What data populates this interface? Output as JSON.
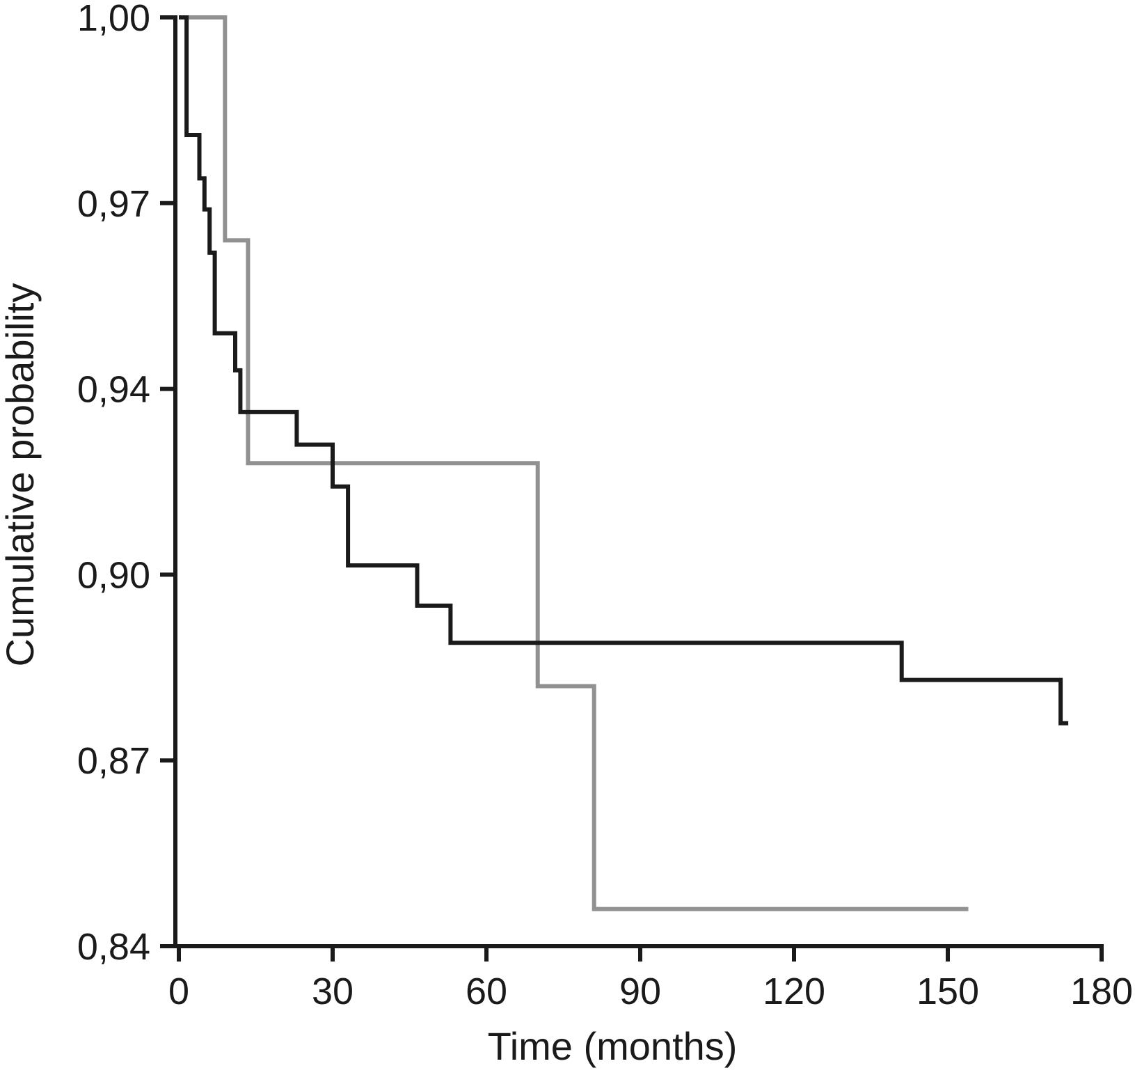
{
  "figure": {
    "kind": "kaplan-meier-survival-plot",
    "background_color": "#ffffff",
    "axis_color": "#1a1a1a"
  },
  "chart_data": {
    "type": "line",
    "subtype": "step-survival-curves",
    "title": "",
    "xlabel": "Time (months)",
    "ylabel": "Cumulative probability",
    "grid": false,
    "legend_position": "none",
    "xlim": [
      0,
      180
    ],
    "x_ticks": [
      0,
      30,
      60,
      90,
      120,
      150,
      180
    ],
    "x_tick_labels": [
      "0",
      "30",
      "60",
      "90",
      "120",
      "150",
      "180"
    ],
    "y_tick_values": [
      1.0,
      0.97,
      0.94,
      0.9,
      0.87,
      0.84
    ],
    "y_tick_labels": [
      "1,00",
      "0,97",
      "0,94",
      "0,90",
      "0,87",
      "0,84"
    ],
    "series": [
      {
        "name": "curve-gray",
        "color": "#919191",
        "start": {
          "t": 0,
          "p": 1.0
        },
        "steps": [
          {
            "t": 9,
            "p": 0.964
          },
          {
            "t": 13.5,
            "p": 0.924
          },
          {
            "t": 70,
            "p": 0.882
          },
          {
            "t": 81,
            "p": 0.846
          }
        ],
        "end_t": 154
      },
      {
        "name": "curve-black",
        "color": "#1a1a1a",
        "start": {
          "t": 0,
          "p": 1.0
        },
        "steps": [
          {
            "t": 1.5,
            "p": 0.981
          },
          {
            "t": 4,
            "p": 0.974
          },
          {
            "t": 5,
            "p": 0.969
          },
          {
            "t": 6,
            "p": 0.962
          },
          {
            "t": 7,
            "p": 0.949
          },
          {
            "t": 11,
            "p": 0.943
          },
          {
            "t": 12,
            "p": 0.935
          },
          {
            "t": 23,
            "p": 0.928
          },
          {
            "t": 30,
            "p": 0.919
          },
          {
            "t": 33,
            "p": 0.902
          },
          {
            "t": 46.5,
            "p": 0.895
          },
          {
            "t": 53,
            "p": 0.889
          },
          {
            "t": 141,
            "p": 0.883
          },
          {
            "t": 172,
            "p": 0.876
          }
        ],
        "end_t": 173.5
      }
    ]
  }
}
